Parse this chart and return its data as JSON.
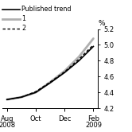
{
  "ylabel": "%",
  "ylim": [
    4.2,
    5.2
  ],
  "yticks": [
    4.2,
    4.4,
    4.6,
    4.8,
    5.0,
    5.2
  ],
  "xtick_labels": [
    "Aug\n2008",
    "Oct",
    "Dec",
    "Feb\n2009"
  ],
  "xtick_positions": [
    0,
    2,
    4,
    6
  ],
  "x": [
    0,
    1,
    2,
    3,
    4,
    5,
    6
  ],
  "published_trend": [
    4.31,
    4.34,
    4.4,
    4.52,
    4.65,
    4.8,
    4.98
  ],
  "scenario1": [
    4.31,
    4.34,
    4.4,
    4.53,
    4.67,
    4.85,
    5.08
  ],
  "scenario2": [
    4.31,
    4.34,
    4.41,
    4.53,
    4.66,
    4.82,
    5.0
  ],
  "color_published": "#000000",
  "color_s1": "#b0b0b0",
  "color_s2": "#000000",
  "lw_published": 1.2,
  "lw_s1": 2.0,
  "lw_s2": 1.0,
  "legend_fontsize": 5.8,
  "tick_fontsize": 6.0,
  "ylabel_fontsize": 6.5,
  "background_color": "#ffffff"
}
